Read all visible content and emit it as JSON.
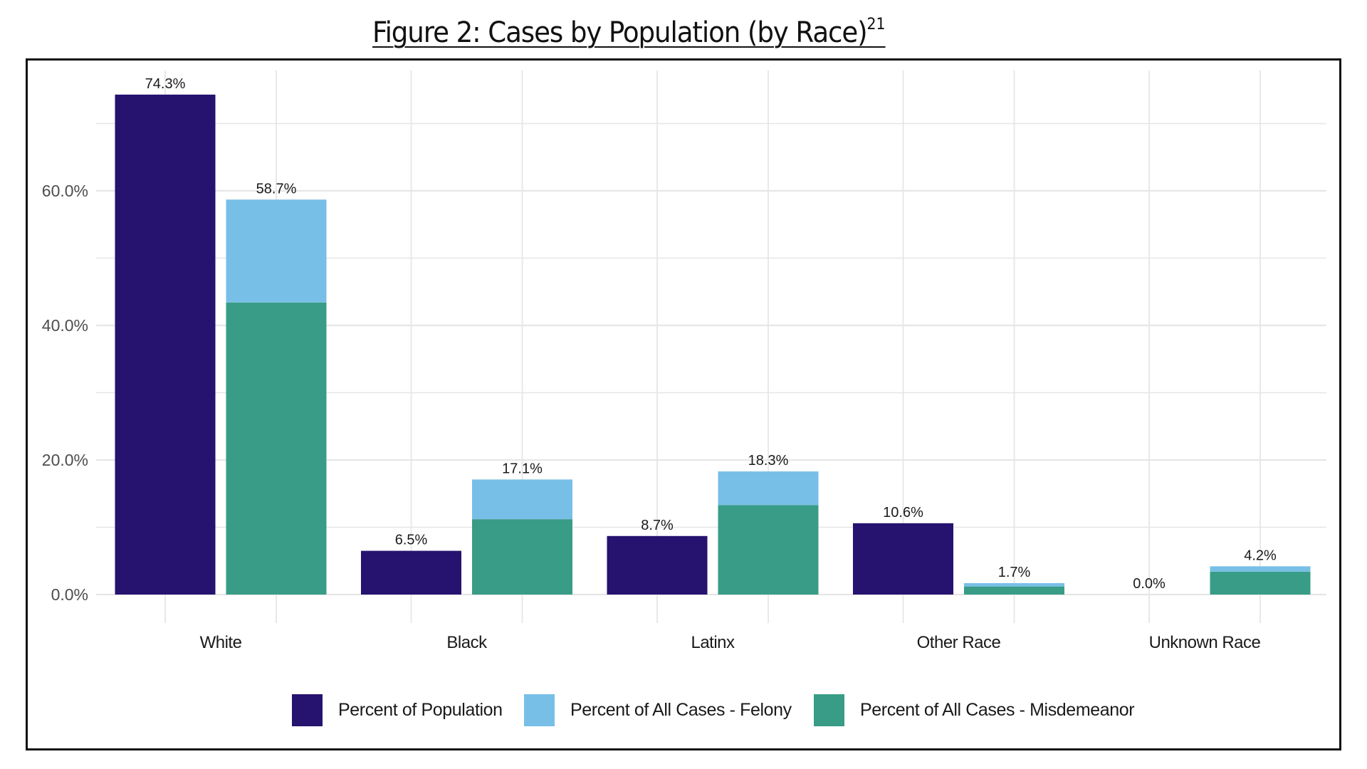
{
  "title": "Figure 2: Cases by Population (by Race)",
  "title_footnote": "21",
  "colors": {
    "population": "#26126f",
    "felony": "#78bfe7",
    "misdemeanor": "#389c86",
    "grid": "#e6e6e6",
    "text": "#1a1a1a",
    "axis_text": "#4d4d4d"
  },
  "legend": [
    {
      "key": "population",
      "label": "Percent of Population"
    },
    {
      "key": "felony",
      "label": "Percent of All Cases - Felony"
    },
    {
      "key": "misdemeanor",
      "label": "Percent of All Cases - Misdemeanor"
    }
  ],
  "chart_data": {
    "type": "bar",
    "title": "Figure 2: Cases by Population (by Race)",
    "xlabel": "",
    "ylabel": "",
    "categories": [
      "White",
      "Black",
      "Latinx",
      "Other Race",
      "Unknown Race"
    ],
    "ylim": [
      0,
      75
    ],
    "yticks": [
      0,
      20,
      40,
      60
    ],
    "ytick_labels": [
      "0.0%",
      "20.0%",
      "40.0%",
      "60.0%"
    ],
    "grid": true,
    "legend_position": "bottom",
    "series": [
      {
        "name": "Percent of Population",
        "key": "population",
        "group": "population",
        "values": [
          74.3,
          6.5,
          8.7,
          10.6,
          0.0
        ]
      },
      {
        "name": "Percent of All Cases - Misdemeanor",
        "key": "misdemeanor",
        "group": "cases",
        "stack_order": 0,
        "values": [
          43.4,
          11.2,
          13.3,
          1.2,
          3.4
        ]
      },
      {
        "name": "Percent of All Cases - Felony",
        "key": "felony",
        "group": "cases",
        "stack_order": 1,
        "values": [
          15.3,
          5.9,
          5.0,
          0.5,
          0.8
        ]
      }
    ],
    "data_labels": {
      "population": [
        "74.3%",
        "6.5%",
        "8.7%",
        "10.6%",
        "0.0%"
      ],
      "cases_total": [
        "58.7%",
        "17.1%",
        "18.3%",
        "1.7%",
        "4.2%"
      ]
    }
  }
}
